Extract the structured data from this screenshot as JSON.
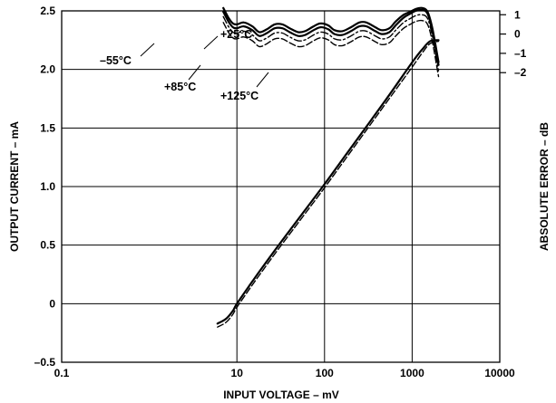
{
  "chart_data": {
    "type": "line",
    "title": "",
    "xlabel": "INPUT VOLTAGE – mV",
    "ylabel": "OUTPUT CURRENT – mA",
    "y2label": "ABSOLUTE ERROR – dB",
    "x_scale": "log",
    "xlim": [
      0.1,
      10000
    ],
    "ylim": [
      -0.5,
      2.5
    ],
    "y2lim": [
      -17,
      1.2
    ],
    "grid": true,
    "x_ticks": [
      "0.1",
      "10",
      "100",
      "1000",
      "10000"
    ],
    "y_ticks": [
      "2.5",
      "2.0",
      "1.5",
      "1.0",
      "0.5",
      "0",
      "–0.5"
    ],
    "y2_ticks": [
      "1",
      "0",
      "–1",
      "–2"
    ],
    "annotations": [
      "+25°C",
      "–55°C",
      "+85°C",
      "+125°C"
    ],
    "series": [
      {
        "role": "output",
        "style": "solid",
        "x": [
          6,
          7.5,
          9,
          10,
          15,
          20,
          30,
          50,
          100,
          200,
          500,
          1000,
          1300,
          1600,
          2000
        ],
        "y": [
          -0.17,
          -0.13,
          -0.06,
          0.0,
          0.19,
          0.32,
          0.5,
          0.72,
          1.02,
          1.33,
          1.74,
          2.06,
          2.17,
          2.24,
          2.25
        ]
      },
      {
        "role": "output",
        "style": "dashed",
        "x": [
          6,
          7.5,
          9,
          10,
          15,
          20,
          30,
          50,
          100,
          200,
          500,
          1000,
          1300,
          1600,
          2000
        ],
        "y": [
          -0.2,
          -0.16,
          -0.09,
          -0.03,
          0.16,
          0.29,
          0.47,
          0.69,
          0.99,
          1.3,
          1.71,
          2.02,
          2.14,
          2.22,
          2.24
        ]
      },
      {
        "role": "error",
        "style": "solid",
        "x": [
          7,
          8,
          9,
          10,
          12,
          15,
          18,
          22,
          27,
          33,
          40,
          50,
          60,
          75,
          90,
          110,
          130,
          160,
          200,
          250,
          300,
          380,
          450,
          550,
          650,
          800,
          950,
          1100,
          1300,
          1500,
          1700,
          2000
        ],
        "y": [
          1.35,
          0.85,
          0.55,
          0.5,
          0.6,
          0.4,
          0.1,
          0.25,
          0.5,
          0.5,
          0.3,
          0.1,
          0.15,
          0.4,
          0.55,
          0.45,
          0.2,
          0.15,
          0.35,
          0.6,
          0.6,
          0.35,
          0.2,
          0.3,
          0.65,
          1.0,
          1.15,
          1.3,
          1.35,
          1.15,
          0.3,
          -1.45
        ]
      },
      {
        "role": "error",
        "style": "solid",
        "x": [
          7,
          8,
          9,
          10,
          12,
          15,
          18,
          22,
          27,
          33,
          40,
          50,
          60,
          75,
          90,
          110,
          130,
          160,
          200,
          250,
          300,
          380,
          450,
          550,
          650,
          800,
          950,
          1100,
          1300,
          1500,
          1700,
          2000
        ],
        "y": [
          1.15,
          0.65,
          0.35,
          0.3,
          0.4,
          0.2,
          -0.1,
          0.05,
          0.3,
          0.3,
          0.1,
          -0.1,
          -0.05,
          0.2,
          0.35,
          0.25,
          0.0,
          -0.05,
          0.15,
          0.4,
          0.4,
          0.15,
          0.0,
          0.1,
          0.45,
          0.85,
          1.05,
          1.2,
          1.25,
          1.05,
          0.15,
          -1.6
        ]
      },
      {
        "role": "error",
        "style": "dash-dot",
        "x": [
          7,
          8,
          9,
          10,
          12,
          15,
          18,
          22,
          27,
          33,
          40,
          50,
          60,
          75,
          90,
          110,
          130,
          160,
          200,
          250,
          300,
          380,
          450,
          550,
          650,
          800,
          950,
          1100,
          1300,
          1500,
          1700,
          2000
        ],
        "y": [
          0.9,
          0.4,
          0.1,
          0.05,
          0.15,
          -0.05,
          -0.35,
          -0.2,
          0.05,
          0.05,
          -0.15,
          -0.35,
          -0.3,
          -0.05,
          0.1,
          0.0,
          -0.25,
          -0.3,
          -0.1,
          0.15,
          0.15,
          -0.1,
          -0.25,
          -0.15,
          0.2,
          0.6,
          0.8,
          0.95,
          1.0,
          0.8,
          -0.1,
          -1.9
        ]
      },
      {
        "role": "error",
        "style": "dashed",
        "x": [
          7,
          8,
          9,
          10,
          12,
          15,
          18,
          22,
          27,
          33,
          40,
          50,
          60,
          75,
          90,
          110,
          130,
          160,
          200,
          250,
          300,
          380,
          450,
          550,
          650,
          800,
          950,
          1100,
          1300,
          1500,
          1700,
          2000
        ],
        "y": [
          0.6,
          0.1,
          -0.2,
          -0.25,
          -0.15,
          -0.35,
          -0.65,
          -0.5,
          -0.25,
          -0.25,
          -0.45,
          -0.65,
          -0.6,
          -0.35,
          -0.2,
          -0.3,
          -0.55,
          -0.6,
          -0.4,
          -0.15,
          -0.15,
          -0.4,
          -0.55,
          -0.45,
          -0.1,
          0.3,
          0.5,
          0.65,
          0.7,
          0.5,
          -0.4,
          -2.2
        ]
      }
    ]
  }
}
